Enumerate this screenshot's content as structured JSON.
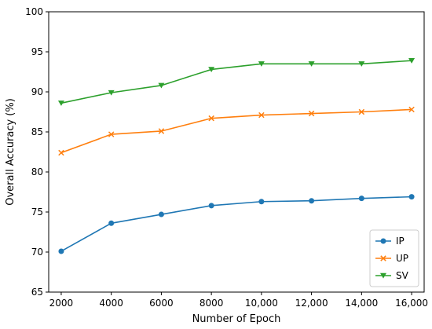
{
  "chart_data": {
    "type": "line",
    "x": [
      2000,
      4000,
      6000,
      8000,
      10000,
      12000,
      14000,
      16000
    ],
    "x_tick_labels": [
      "2000",
      "4000",
      "6000",
      "8000",
      "10,000",
      "12,000",
      "14,000",
      "16,000"
    ],
    "series": [
      {
        "name": "IP",
        "values": [
          70.1,
          73.6,
          74.7,
          75.8,
          76.3,
          76.4,
          76.7,
          76.9
        ],
        "color": "#1f77b4",
        "marker": "circle"
      },
      {
        "name": "UP",
        "values": [
          82.4,
          84.7,
          85.1,
          86.7,
          87.1,
          87.3,
          87.5,
          87.8
        ],
        "color": "#ff7f0e",
        "marker": "x"
      },
      {
        "name": "SV",
        "values": [
          88.6,
          89.9,
          90.8,
          92.8,
          93.5,
          93.5,
          93.5,
          93.9
        ],
        "color": "#2ca02c",
        "marker": "triangle-down"
      }
    ],
    "xlabel": "Number of Epoch",
    "ylabel": "Overall Accuracy (%)",
    "ylim": [
      65,
      100
    ],
    "xlim": [
      1500,
      16500
    ],
    "y_ticks": [
      65,
      70,
      75,
      80,
      85,
      90,
      95,
      100
    ],
    "grid": false,
    "legend_position": "bottom-right"
  }
}
